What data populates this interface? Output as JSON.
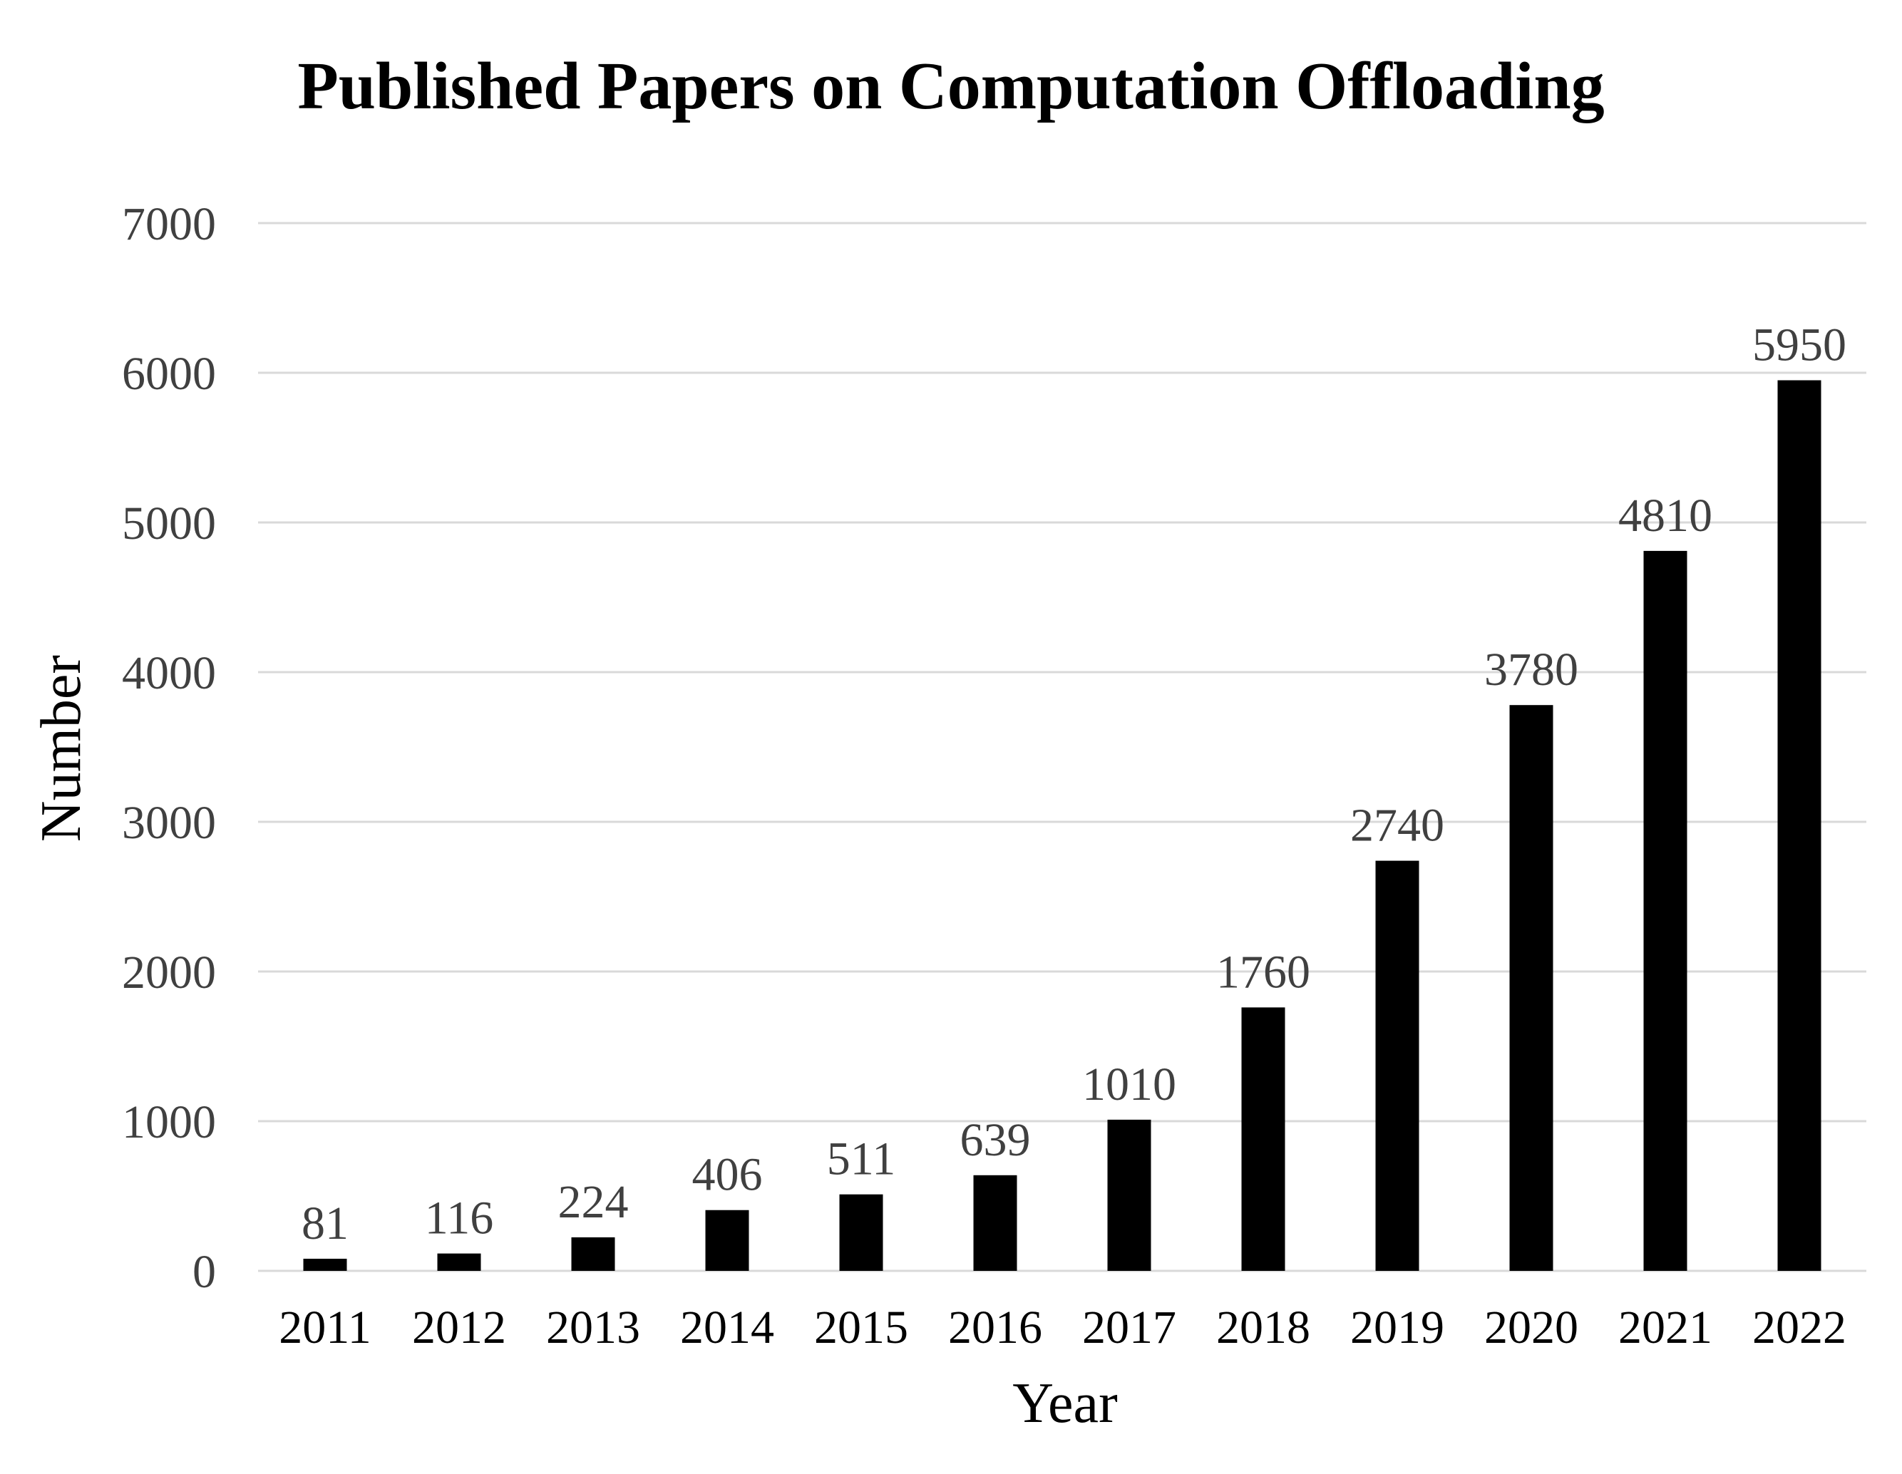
{
  "chart_data": {
    "type": "bar",
    "title": "Published Papers on Computation Offloading",
    "xlabel": "Year",
    "ylabel": "Number",
    "categories": [
      "2011",
      "2012",
      "2013",
      "2014",
      "2015",
      "2016",
      "2017",
      "2018",
      "2019",
      "2020",
      "2021",
      "2022"
    ],
    "series": [
      {
        "name": "Number",
        "values": [
          81,
          116,
          224,
          406,
          511,
          639,
          1010,
          1760,
          2740,
          3780,
          4810,
          5950
        ]
      }
    ],
    "data_labels": [
      "81",
      "116",
      "224",
      "406",
      "511",
      "639",
      "1010",
      "1760",
      "2740",
      "3780",
      "4810",
      "5950"
    ],
    "ylim": [
      0,
      7000
    ],
    "yticks": [
      0,
      1000,
      2000,
      3000,
      4000,
      5000,
      6000,
      7000
    ],
    "ytick_labels": [
      "0",
      "1000",
      "2000",
      "3000",
      "4000",
      "5000",
      "6000",
      "7000"
    ],
    "grid": true,
    "legend": "none",
    "colors": {
      "bar": "#000000",
      "grid": "#d9d9d9",
      "tick_text": "#404040",
      "title_text": "#000000"
    }
  }
}
